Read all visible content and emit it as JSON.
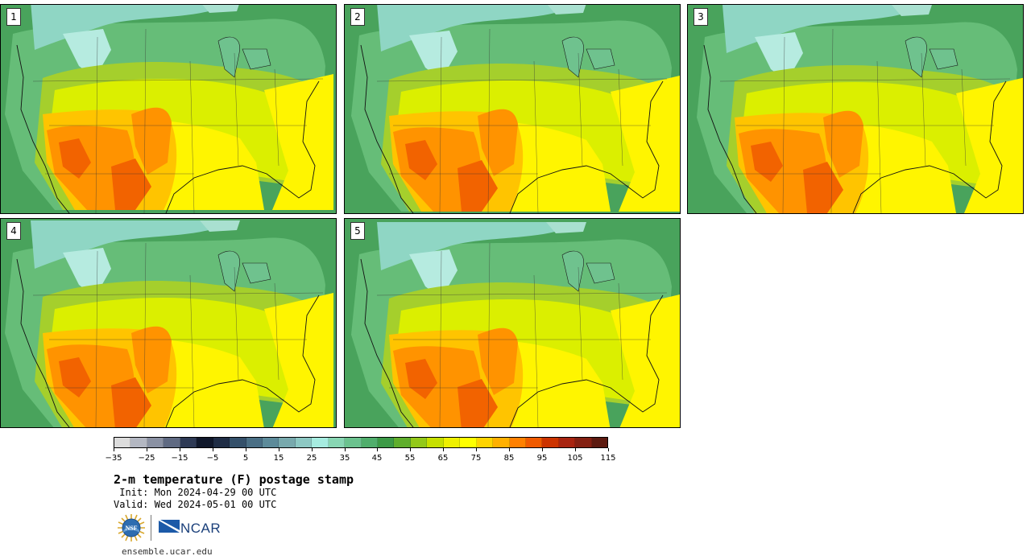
{
  "panels": [
    {
      "number": "1"
    },
    {
      "number": "2"
    },
    {
      "number": "3"
    },
    {
      "number": "4"
    },
    {
      "number": "5"
    }
  ],
  "colorbar": {
    "colors": [
      "#dcdcdc",
      "#b3b7c2",
      "#8a91a3",
      "#5f6a82",
      "#2e3a55",
      "#10182b",
      "#1f2d45",
      "#34506a",
      "#4a6f85",
      "#5d8b9a",
      "#78a9ad",
      "#8dc8c3",
      "#a6ece0",
      "#88d6b3",
      "#6bc28e",
      "#50ae6c",
      "#3c9a46",
      "#5fae2c",
      "#93c91a",
      "#c6e000",
      "#eef000",
      "#ffff00",
      "#ffd400",
      "#ffb000",
      "#ff8000",
      "#f05a00",
      "#cc3300",
      "#a82410",
      "#842012",
      "#5c1a10"
    ],
    "labels": [
      "-35",
      "-25",
      "-15",
      "-5",
      "5",
      "15",
      "25",
      "35",
      "45",
      "55",
      "65",
      "75",
      "85",
      "95",
      "105",
      "115"
    ]
  },
  "title": "2-m temperature (F) postage stamp",
  "init_line": " Init: Mon 2024-04-29 00 UTC",
  "valid_line": "Valid: Wed 2024-05-01 00 UTC",
  "logos": {
    "nsf": "NSF",
    "ncar": "NCAR"
  },
  "footer_url": "ensemble.ucar.edu"
}
